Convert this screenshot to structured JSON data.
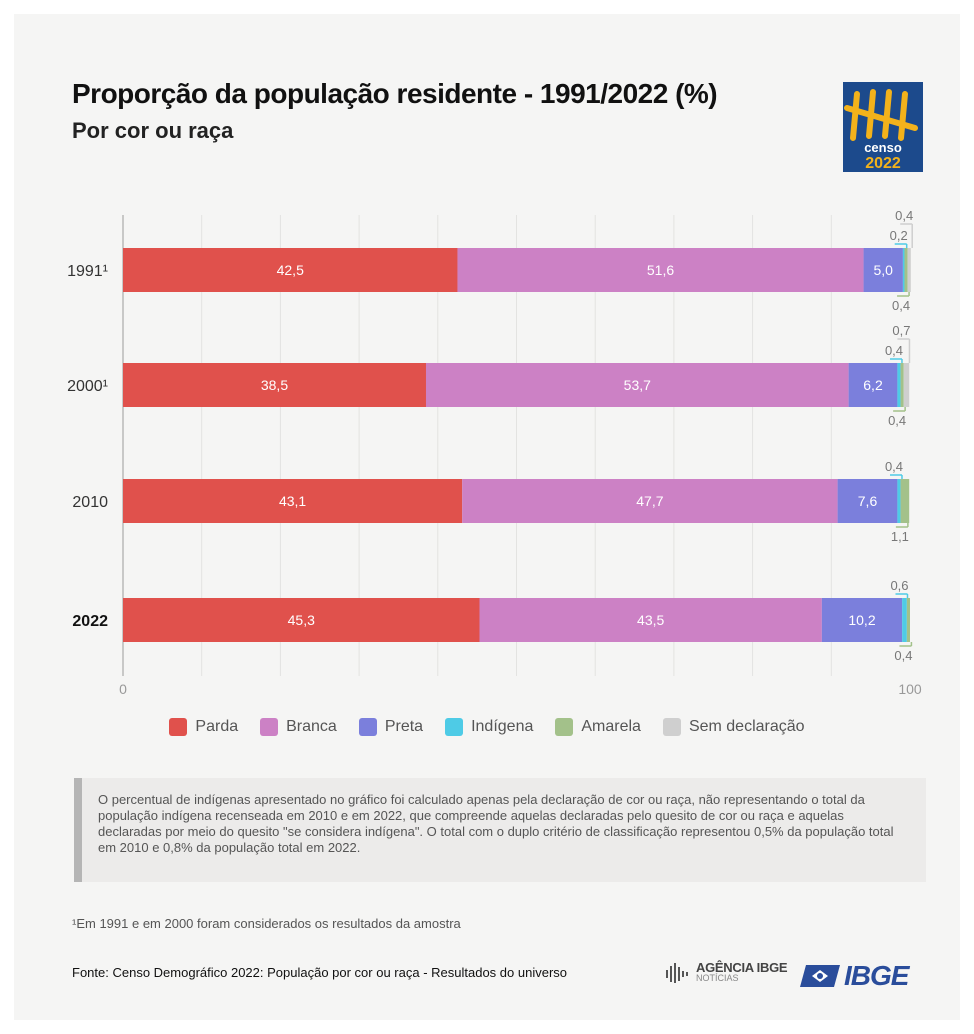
{
  "header": {
    "title": "Proporção da população residente - 1991/2022 (%)",
    "subtitle": "Por cor ou raça",
    "logo_text_top": "censo",
    "logo_text_bottom": "2022"
  },
  "chart_data": {
    "type": "bar",
    "orientation": "horizontal",
    "stacked": true,
    "categories": [
      "1991¹",
      "2000¹",
      "2010",
      "2022"
    ],
    "bold_categories": [
      "2022"
    ],
    "xlim": [
      0,
      100
    ],
    "x_ticks": [
      "0",
      "100"
    ],
    "series": [
      {
        "name": "Parda",
        "color": "#e0514c",
        "values": [
          42.5,
          38.5,
          43.1,
          45.3
        ],
        "labels": [
          "42,5",
          "38,5",
          "43,1",
          "45,3"
        ]
      },
      {
        "name": "Branca",
        "color": "#cc81c5",
        "values": [
          51.6,
          53.7,
          47.7,
          43.5
        ],
        "labels": [
          "51,6",
          "53,7",
          "47,7",
          "43,5"
        ]
      },
      {
        "name": "Preta",
        "color": "#7b7fdc",
        "values": [
          5.0,
          6.2,
          7.6,
          10.2
        ],
        "labels": [
          "5,0",
          "6,2",
          "7,6",
          "10,2"
        ]
      },
      {
        "name": "Indígena",
        "color": "#4ecbe6",
        "values": [
          0.2,
          0.4,
          0.4,
          0.6
        ],
        "labels": [
          "0,2",
          "0,4",
          "0,4",
          "0,6"
        ]
      },
      {
        "name": "Amarela",
        "color": "#a3c18a",
        "values": [
          0.4,
          0.4,
          1.1,
          0.4
        ],
        "labels": [
          "0,4",
          "0,4",
          "1,1",
          "0,4"
        ]
      },
      {
        "name": "Sem declaração",
        "color": "#cfcfcf",
        "values": [
          0.4,
          0.7,
          0.0,
          0.0
        ],
        "labels": [
          "0,4",
          "0,7",
          "",
          ""
        ]
      }
    ],
    "grid": true,
    "legend_position": "bottom"
  },
  "note": {
    "text": "O percentual de indígenas apresentado no gráfico foi calculado apenas pela declaração de cor ou raça, não representando o total da população indígena recenseada em 2010 e em 2022, que compreende aquelas declaradas pelo quesito de cor ou raça e aquelas declaradas por meio do quesito \"se considera indígena\". O total com o duplo critério de classificação representou 0,5% da população total em 2010 e 0,8% da população total em 2022."
  },
  "footnote": "¹Em 1991 e em 2000 foram considerados os resultados da amostra",
  "source": "Fonte: Censo Demográfico 2022: População por cor ou raça - Resultados do universo",
  "brand": {
    "agencia_main": "AGÊNCIA IBGE",
    "agencia_sub": "NOTÍCIAS",
    "ibge": "IBGE"
  },
  "colors": {
    "logo_bg": "#1c4a8c",
    "logo_fg": "#f3b21b",
    "ibge_blue": "#2a4d9b"
  }
}
